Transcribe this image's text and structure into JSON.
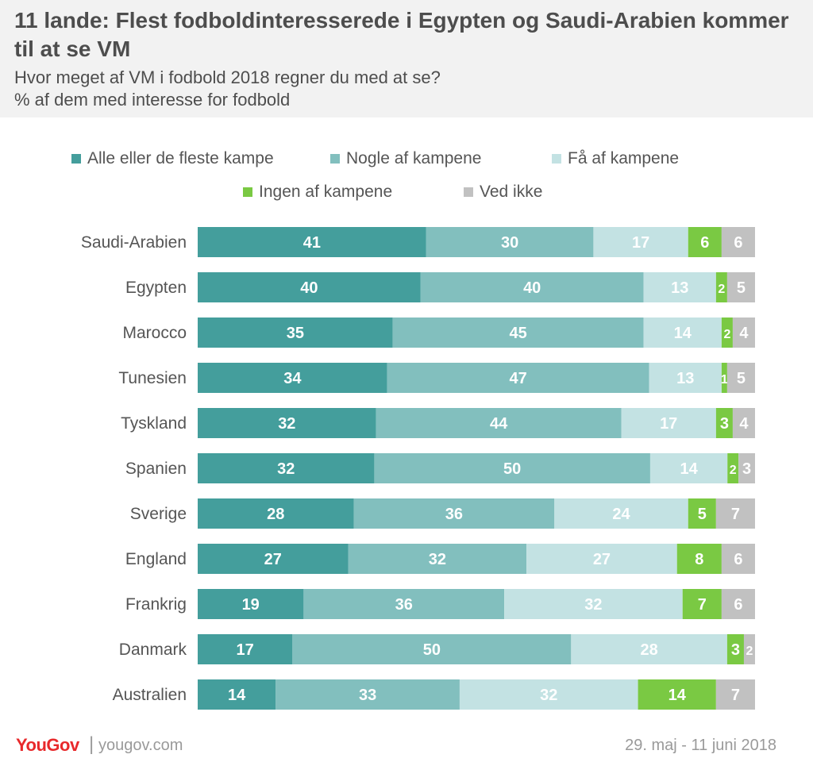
{
  "chart_data": {
    "type": "bar",
    "orientation": "horizontal",
    "stacked": true,
    "title": "11 lande: Flest fodboldinteresserede i Egypten og Saudi-Arabien kommer til at se VM",
    "subtitle_line1": "Hvor meget af VM i fodbold 2018 regner du med at se?",
    "subtitle_line2": "% af dem med interesse for fodbold",
    "legend_position": "top",
    "categories": [
      "Saudi-Arabien",
      "Egypten",
      "Marocco",
      "Tunesien",
      "Tyskland",
      "Spanien",
      "Sverige",
      "England",
      "Frankrig",
      "Danmark",
      "Australien"
    ],
    "series": [
      {
        "name": "Alle eller de fleste kampe",
        "color": "#449e9c",
        "label_color": "#ffffff",
        "values": [
          41,
          40,
          35,
          34,
          32,
          32,
          28,
          27,
          19,
          17,
          14
        ]
      },
      {
        "name": "Nogle af kampene",
        "color": "#82bfbe",
        "label_color": "#ffffff",
        "values": [
          30,
          40,
          45,
          47,
          44,
          50,
          36,
          32,
          36,
          50,
          33
        ]
      },
      {
        "name": "Få af kampene",
        "color": "#c3e2e3",
        "label_color": "#ffffff",
        "values": [
          17,
          13,
          14,
          13,
          17,
          14,
          24,
          27,
          32,
          28,
          32
        ]
      },
      {
        "name": "Ingen af kampene",
        "color": "#7ac943",
        "label_color": "#ffffff",
        "values": [
          6,
          2,
          2,
          1,
          3,
          2,
          5,
          8,
          7,
          3,
          14
        ]
      },
      {
        "name": "Ved ikke",
        "color": "#c1c1c1",
        "label_color": "#ffffff",
        "values": [
          6,
          5,
          4,
          5,
          4,
          3,
          7,
          6,
          6,
          2,
          7
        ]
      }
    ]
  },
  "footer": {
    "brand": "YouGov",
    "separator": "|",
    "url": "yougov.com",
    "date": "29. maj - 11 juni 2018"
  }
}
